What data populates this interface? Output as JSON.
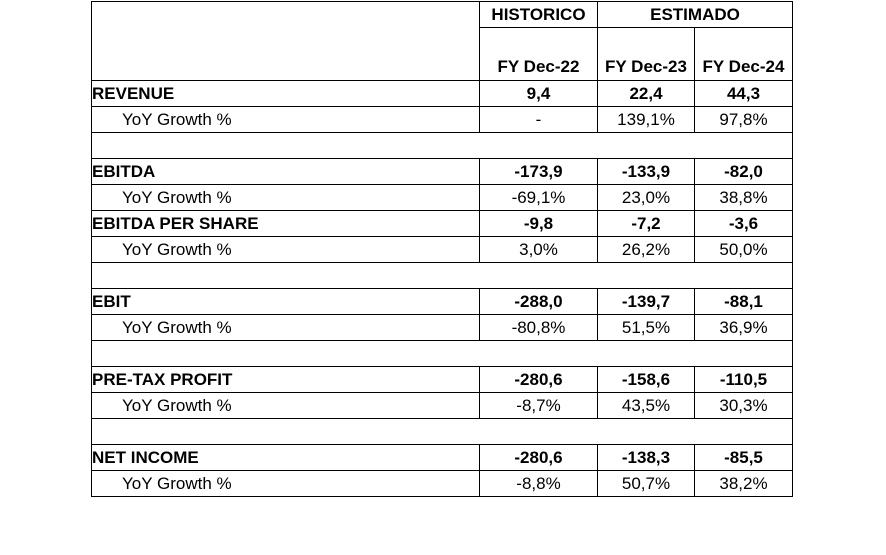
{
  "header": {
    "group_hist": "HISTORICO",
    "group_est": "ESTIMADO",
    "col_hist": "FY Dec-22",
    "col_e1": "FY Dec-23",
    "col_e2": "FY Dec-24"
  },
  "rows": {
    "revenue": {
      "label": "REVENUE",
      "v1": "9,4",
      "v2": "22,4",
      "v3": "44,3"
    },
    "revenue_growth": {
      "label": "YoY Growth %",
      "v1": "-",
      "v2": "139,1%",
      "v3": "97,8%"
    },
    "ebitda": {
      "label": "EBITDA",
      "v1": "-173,9",
      "v2": "-133,9",
      "v3": "-82,0"
    },
    "ebitda_growth": {
      "label": "YoY Growth %",
      "v1": "-69,1%",
      "v2": "23,0%",
      "v3": "38,8%"
    },
    "ebitda_ps": {
      "label": "EBITDA PER SHARE",
      "v1": "-9,8",
      "v2": "-7,2",
      "v3": "-3,6"
    },
    "ebitda_ps_growth": {
      "label": "YoY Growth %",
      "v1": "3,0%",
      "v2": "26,2%",
      "v3": "50,0%"
    },
    "ebit": {
      "label": "EBIT",
      "v1": "-288,0",
      "v2": "-139,7",
      "v3": "-88,1"
    },
    "ebit_growth": {
      "label": "YoY Growth %",
      "v1": "-80,8%",
      "v2": "51,5%",
      "v3": "36,9%"
    },
    "pretax": {
      "label": "PRE-TAX PROFIT",
      "v1": "-280,6",
      "v2": "-158,6",
      "v3": "-110,5"
    },
    "pretax_growth": {
      "label": "YoY Growth %",
      "v1": "-8,7%",
      "v2": "43,5%",
      "v3": "30,3%"
    },
    "net": {
      "label": "NET INCOME",
      "v1": "-280,6",
      "v2": "-138,3",
      "v3": "-85,5"
    },
    "net_growth": {
      "label": "YoY Growth %",
      "v1": "-8,8%",
      "v2": "50,7%",
      "v3": "38,2%"
    }
  }
}
